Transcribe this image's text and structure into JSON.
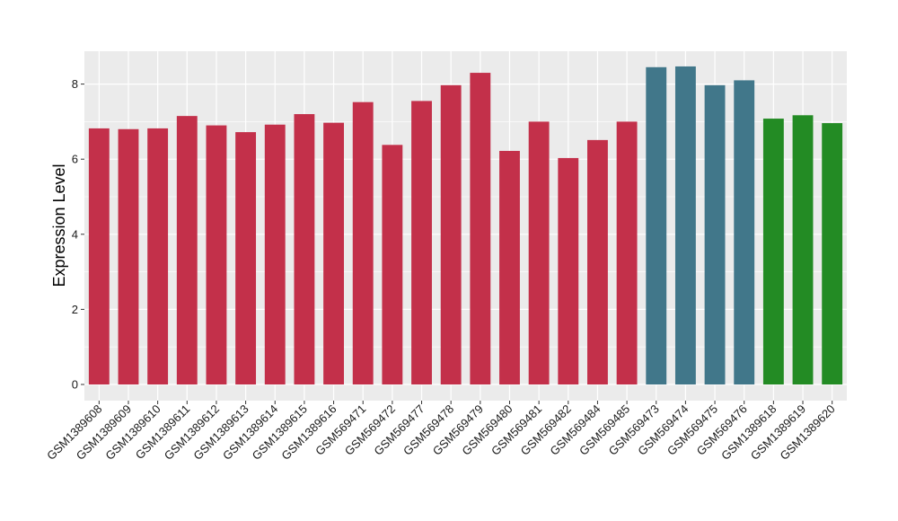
{
  "chart_data": {
    "type": "bar",
    "title": "",
    "xlabel": "",
    "ylabel": "Expression Level",
    "ylim": [
      0,
      8.8
    ],
    "yticks": [
      0,
      2,
      4,
      6,
      8
    ],
    "grid": true,
    "legend": "none",
    "categories": [
      "GSM1389608",
      "GSM1389609",
      "GSM1389610",
      "GSM1389611",
      "GSM1389612",
      "GSM1389613",
      "GSM1389614",
      "GSM1389615",
      "GSM1389616",
      "GSM569471",
      "GSM569472",
      "GSM569477",
      "GSM569478",
      "GSM569479",
      "GSM569480",
      "GSM569481",
      "GSM569482",
      "GSM569484",
      "GSM569485",
      "GSM569473",
      "GSM569474",
      "GSM569475",
      "GSM569476",
      "GSM1389618",
      "GSM1389619",
      "GSM1389620"
    ],
    "values": [
      6.82,
      6.8,
      6.82,
      7.15,
      6.9,
      6.72,
      6.92,
      7.2,
      6.97,
      7.52,
      6.38,
      7.55,
      7.97,
      8.3,
      6.22,
      7.0,
      6.03,
      6.51,
      7.0,
      8.45,
      8.47,
      7.97,
      8.1,
      7.08,
      7.17,
      6.96
    ],
    "groups": [
      0,
      0,
      0,
      0,
      0,
      0,
      0,
      0,
      0,
      0,
      0,
      0,
      0,
      0,
      0,
      0,
      0,
      0,
      0,
      1,
      1,
      1,
      1,
      2,
      2,
      2
    ],
    "group_colors": [
      "#C3304A",
      "#41778A",
      "#238B24"
    ],
    "panel_background": "#EBEBEB",
    "grid_color": "#FFFFFF"
  }
}
